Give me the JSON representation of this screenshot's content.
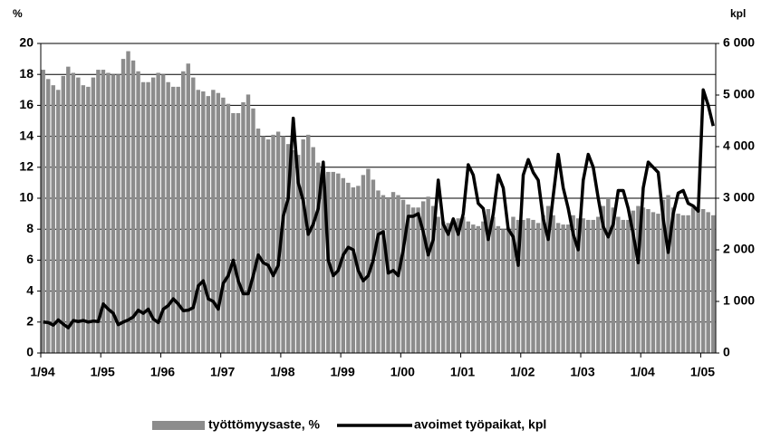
{
  "chart_data": {
    "type": "bar_line",
    "axis_label_left": "%",
    "axis_label_right": "kpl",
    "categories": [
      "1/94",
      null,
      null,
      null,
      null,
      null,
      null,
      null,
      null,
      null,
      null,
      null,
      "1/95",
      null,
      null,
      null,
      null,
      null,
      null,
      null,
      null,
      null,
      null,
      null,
      "1/96",
      null,
      null,
      null,
      null,
      null,
      null,
      null,
      null,
      null,
      null,
      null,
      "1/97",
      null,
      null,
      null,
      null,
      null,
      null,
      null,
      null,
      null,
      null,
      null,
      "1/98",
      null,
      null,
      null,
      null,
      null,
      null,
      null,
      null,
      null,
      null,
      null,
      "1/99",
      null,
      null,
      null,
      null,
      null,
      null,
      null,
      null,
      null,
      null,
      null,
      "1/00",
      null,
      null,
      null,
      null,
      null,
      null,
      null,
      null,
      null,
      null,
      null,
      "1/01",
      null,
      null,
      null,
      null,
      null,
      null,
      null,
      null,
      null,
      null,
      null,
      "1/02",
      null,
      null,
      null,
      null,
      null,
      null,
      null,
      null,
      null,
      null,
      null,
      "1/03",
      null,
      null,
      null,
      null,
      null,
      null,
      null,
      null,
      null,
      null,
      null,
      "1/04",
      null,
      null,
      null,
      null,
      null,
      null,
      null,
      null,
      null,
      null,
      null,
      "1/05",
      null,
      null
    ],
    "series": [
      {
        "name": "työttömyysaste, %",
        "type": "bar",
        "color": "#8c8c8c",
        "values": [
          18.3,
          17.7,
          17.3,
          17.0,
          17.9,
          18.5,
          18.1,
          17.8,
          17.3,
          17.2,
          17.8,
          18.3,
          18.3,
          18.1,
          18.0,
          18.0,
          19.0,
          19.5,
          18.9,
          18.2,
          17.5,
          17.5,
          17.8,
          18.1,
          18.0,
          17.5,
          17.2,
          17.2,
          18.2,
          18.7,
          17.8,
          17.0,
          16.9,
          16.6,
          17.0,
          16.8,
          16.5,
          16.1,
          15.5,
          15.5,
          16.2,
          16.7,
          15.8,
          14.5,
          14.0,
          13.8,
          14.1,
          14.3,
          14.0,
          13.5,
          13.1,
          12.8,
          13.8,
          14.1,
          13.3,
          12.3,
          11.8,
          11.7,
          11.7,
          11.6,
          11.3,
          11.0,
          10.7,
          10.8,
          11.5,
          11.9,
          11.2,
          10.5,
          10.2,
          10.0,
          10.4,
          10.2,
          9.9,
          9.6,
          9.4,
          9.4,
          9.8,
          10.1,
          9.5,
          8.8,
          8.5,
          8.4,
          8.6,
          8.7,
          8.8,
          8.5,
          8.3,
          8.2,
          8.5,
          9.3,
          8.8,
          8.2,
          8.0,
          8.1,
          8.8,
          8.6,
          8.6,
          8.7,
          8.6,
          8.4,
          8.9,
          9.5,
          8.9,
          8.4,
          8.3,
          8.3,
          8.9,
          8.7,
          8.7,
          8.6,
          8.6,
          8.8,
          9.5,
          10.0,
          9.4,
          8.8,
          8.6,
          8.6,
          9.2,
          9.5,
          9.4,
          9.3,
          9.1,
          9.0,
          9.9,
          10.2,
          9.4,
          9.0,
          8.9,
          8.9,
          9.4,
          9.3,
          9.3,
          9.1,
          8.9
        ]
      },
      {
        "name": "avoimet työpaikat, kpl",
        "type": "line",
        "axis": "y2",
        "color": "#000000",
        "values": [
          600,
          590,
          540,
          640,
          560,
          490,
          630,
          610,
          630,
          600,
          620,
          610,
          950,
          850,
          770,
          550,
          600,
          640,
          700,
          830,
          770,
          850,
          660,
          590,
          850,
          920,
          1050,
          950,
          820,
          830,
          880,
          1300,
          1400,
          1050,
          1000,
          850,
          1350,
          1500,
          1800,
          1400,
          1150,
          1150,
          1500,
          1900,
          1750,
          1700,
          1500,
          1700,
          2650,
          3000,
          4550,
          3300,
          2950,
          2300,
          2500,
          2800,
          3700,
          1800,
          1500,
          1600,
          1900,
          2050,
          2000,
          1600,
          1400,
          1500,
          1800,
          2300,
          2350,
          1550,
          1600,
          1500,
          2000,
          2650,
          2650,
          2700,
          2350,
          1900,
          2200,
          3350,
          2500,
          2300,
          2600,
          2300,
          2700,
          3650,
          3450,
          2900,
          2800,
          2200,
          2700,
          3450,
          3200,
          2400,
          2250,
          1700,
          3450,
          3750,
          3500,
          3350,
          2600,
          2200,
          3050,
          3850,
          3200,
          2800,
          2300,
          2000,
          3350,
          3850,
          3600,
          3000,
          2450,
          2250,
          2500,
          3150,
          3150,
          2800,
          2300,
          1750,
          3200,
          3700,
          3600,
          3500,
          2600,
          1950,
          2700,
          3100,
          3150,
          2900,
          2850,
          2750,
          5100,
          4800,
          4400
        ]
      }
    ],
    "ylim": [
      0,
      20
    ],
    "yticks": [
      0,
      2,
      4,
      6,
      8,
      10,
      12,
      14,
      16,
      18,
      20
    ],
    "y2lim": [
      0,
      6000
    ],
    "y2ticks": [
      0,
      {
        "value": 1000,
        "label": "1 000"
      },
      {
        "value": 2000,
        "label": "2 000"
      },
      {
        "value": 3000,
        "label": "3 000"
      },
      {
        "value": 4000,
        "label": "4 000"
      },
      {
        "value": 5000,
        "label": "5 000"
      },
      {
        "value": 6000,
        "label": "6 000"
      }
    ],
    "grid": true,
    "legend": "bottom"
  }
}
